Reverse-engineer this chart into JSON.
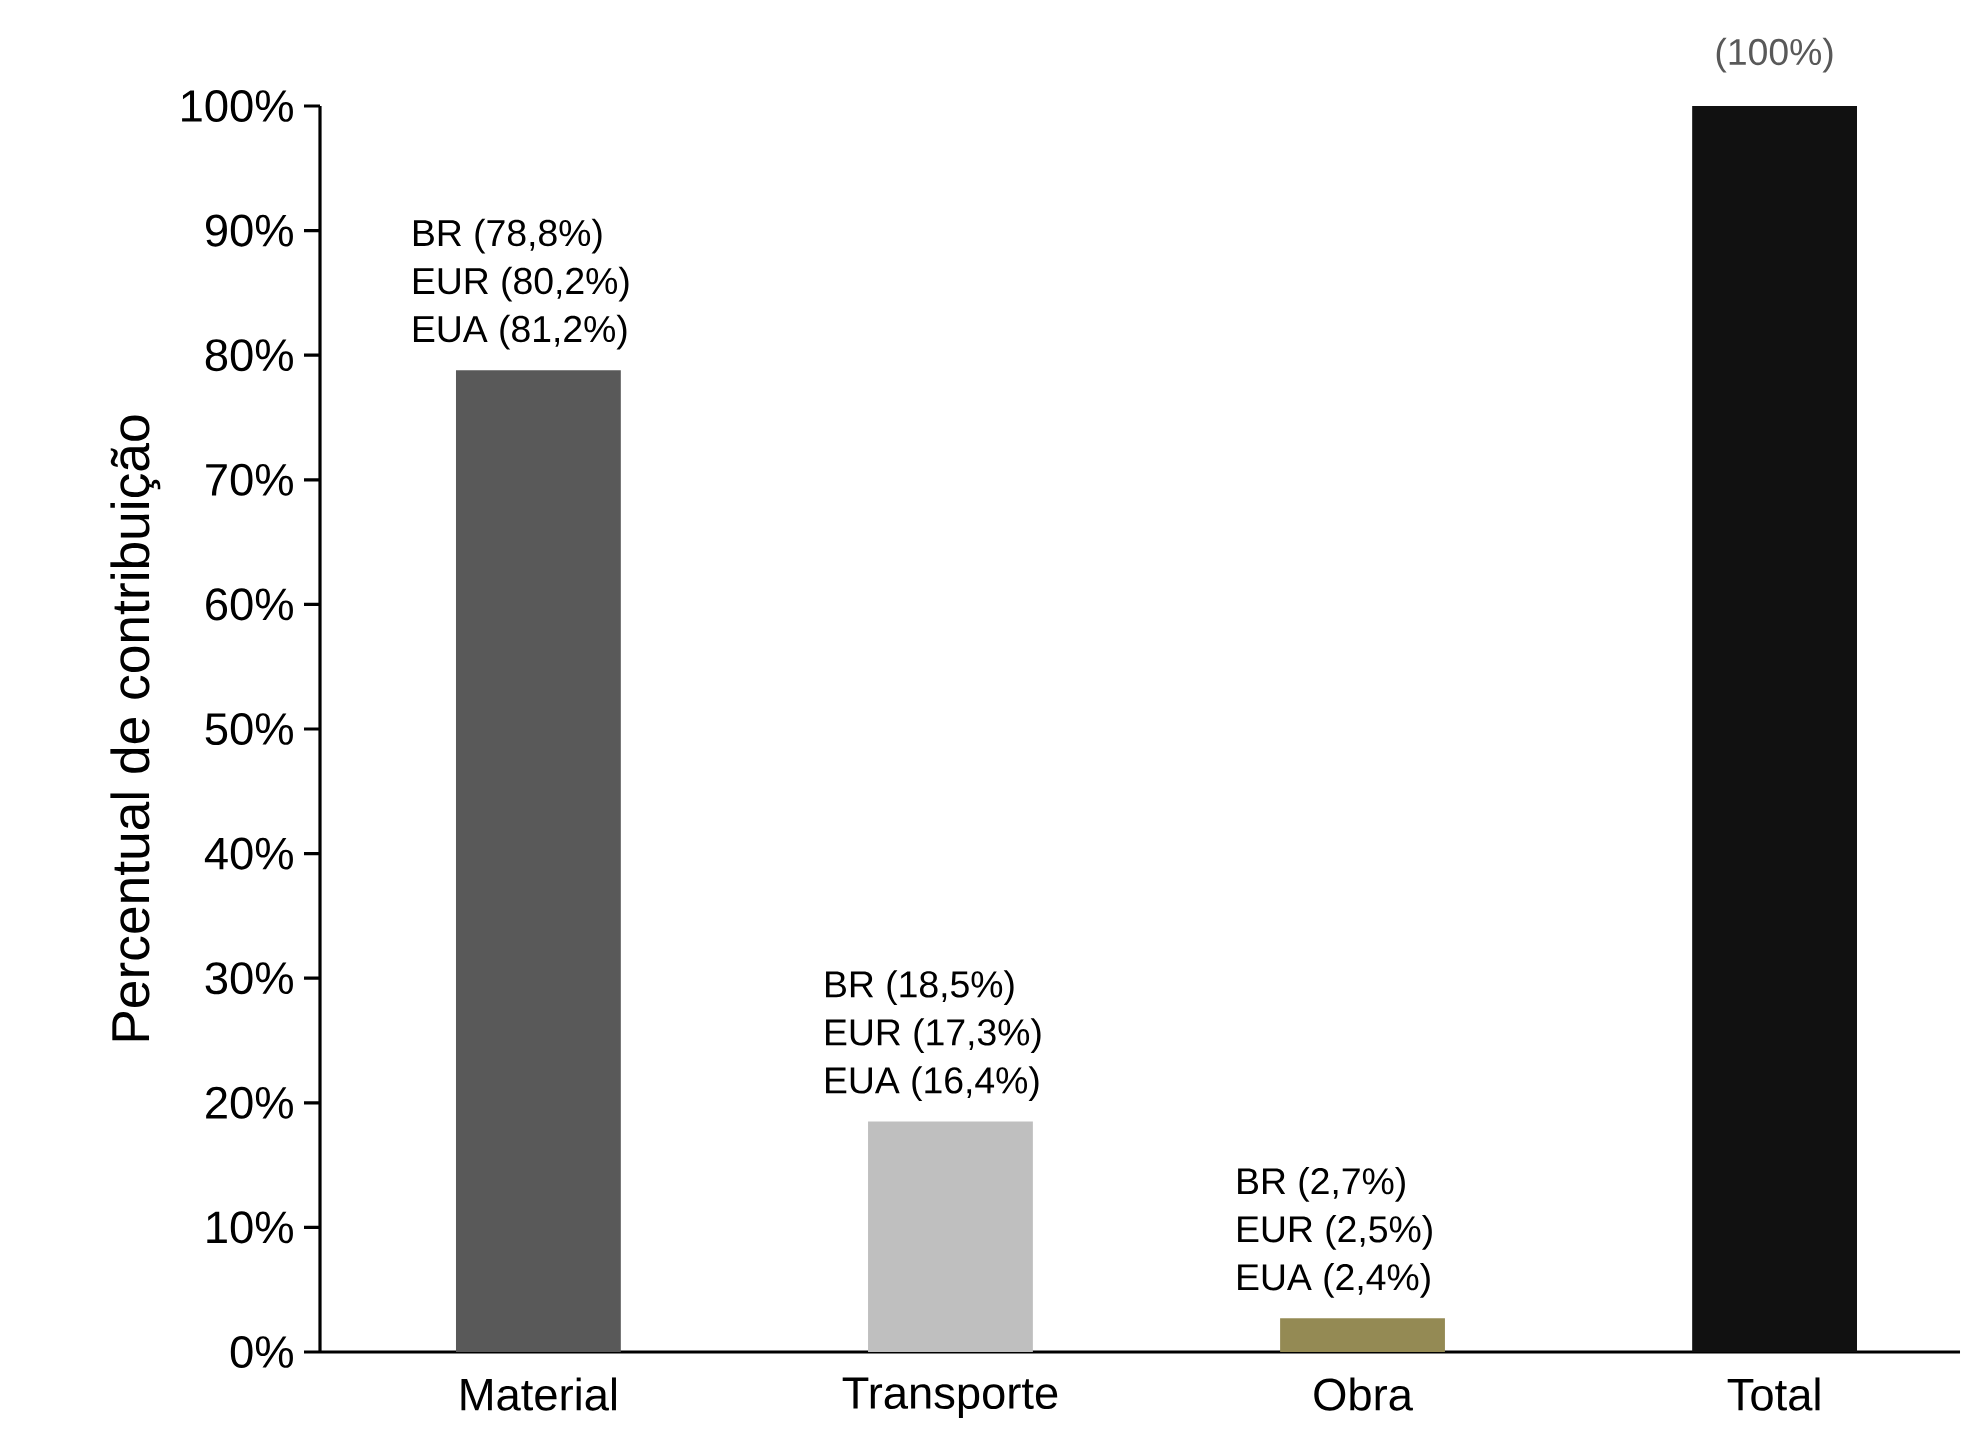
{
  "chart_data": {
    "type": "bar",
    "ylabel": "Percentual de contribuição",
    "categories": [
      "Material",
      "Transporte",
      "Obra",
      "Total"
    ],
    "values": [
      78.8,
      18.5,
      2.7,
      100
    ],
    "colors": [
      "#595959",
      "#bfbfbf",
      "#948a54",
      "#111111"
    ],
    "value_labels": [
      null,
      null,
      null,
      "(100%)"
    ],
    "ylim": [
      0,
      100
    ],
    "yticks": [
      {
        "value": 0,
        "label": "0%"
      },
      {
        "value": 10,
        "label": "10%"
      },
      {
        "value": 20,
        "label": "20%"
      },
      {
        "value": 30,
        "label": "30%"
      },
      {
        "value": 40,
        "label": "40%"
      },
      {
        "value": 50,
        "label": "50%"
      },
      {
        "value": 60,
        "label": "60%"
      },
      {
        "value": 70,
        "label": "70%"
      },
      {
        "value": 80,
        "label": "80%"
      },
      {
        "value": 90,
        "label": "90%"
      },
      {
        "value": 100,
        "label": "100%"
      }
    ],
    "grid": false,
    "annotations": [
      "BR (78,8%)",
      "EUR (80,2%)",
      "EUA (81,2%)",
      "BR (18,5%)",
      "EUR (17,3%)",
      "EUA  (16,4%)",
      "BR (2,7%)",
      "EUR (2,5%)",
      "EUA (2,4%)"
    ]
  }
}
